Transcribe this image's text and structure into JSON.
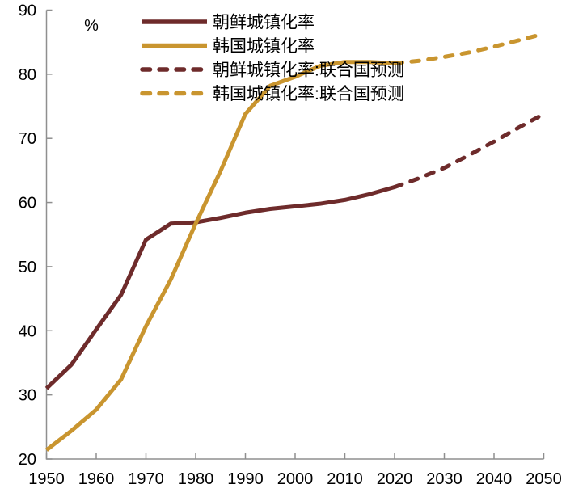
{
  "figure": {
    "unit_label": "%"
  },
  "colors": {
    "north_korea": "#6E2B2B",
    "south_korea": "#C9952F",
    "axis": "#8F8F8F",
    "text": "#000000",
    "background": "#FFFFFF"
  },
  "legend": {
    "position": "top-left-inside",
    "items": [
      {
        "label": "朝鲜城镇化率",
        "series_id": "nk_hist"
      },
      {
        "label": "韩国城镇化率",
        "series_id": "sk_hist"
      },
      {
        "label": "朝鲜城镇化率:联合国预测",
        "series_id": "nk_fcst"
      },
      {
        "label": "韩国城镇化率:联合国预测",
        "series_id": "sk_fcst"
      }
    ]
  },
  "chart_data": {
    "type": "line",
    "title": "",
    "xlabel": "",
    "ylabel": "%",
    "xlim": [
      1950,
      2050
    ],
    "ylim": [
      20,
      90
    ],
    "xticks": [
      1950,
      1960,
      1970,
      1980,
      1990,
      2000,
      2010,
      2020,
      2030,
      2040,
      2050
    ],
    "yticks": [
      20,
      30,
      40,
      50,
      60,
      70,
      80,
      90
    ],
    "grid": false,
    "legend_position": "top-left-inside",
    "series": [
      {
        "id": "nk_hist",
        "name": "朝鲜城镇化率",
        "style": "solid",
        "color": "#6E2B2B",
        "x": [
          1950,
          1955,
          1960,
          1965,
          1970,
          1975,
          1980,
          1985,
          1990,
          1995,
          2000,
          2005,
          2010,
          2015,
          2020
        ],
        "values": [
          31.0,
          34.7,
          40.2,
          45.6,
          54.2,
          56.7,
          56.9,
          57.6,
          58.4,
          59.0,
          59.4,
          59.8,
          60.4,
          61.3,
          62.4
        ]
      },
      {
        "id": "sk_hist",
        "name": "韩国城镇化率",
        "style": "solid",
        "color": "#C9952F",
        "x": [
          1950,
          1955,
          1960,
          1965,
          1970,
          1975,
          1980,
          1985,
          1990,
          1995,
          2000,
          2005,
          2010,
          2015,
          2020
        ],
        "values": [
          21.4,
          24.4,
          27.7,
          32.4,
          40.7,
          48.0,
          56.7,
          64.9,
          73.8,
          78.2,
          79.6,
          81.3,
          81.9,
          81.9,
          81.7
        ]
      },
      {
        "id": "nk_fcst",
        "name": "朝鲜城镇化率:联合国预测",
        "style": "dashed",
        "color": "#6E2B2B",
        "x": [
          2020,
          2025,
          2030,
          2035,
          2040,
          2045,
          2050
        ],
        "values": [
          62.4,
          63.8,
          65.4,
          67.4,
          69.5,
          71.7,
          73.8
        ]
      },
      {
        "id": "sk_fcst",
        "name": "韩国城镇化率:联合国预测",
        "style": "dashed",
        "color": "#C9952F",
        "x": [
          2020,
          2025,
          2030,
          2035,
          2040,
          2045,
          2050
        ],
        "values": [
          81.7,
          82.1,
          82.7,
          83.4,
          84.3,
          85.3,
          86.3
        ]
      }
    ]
  }
}
